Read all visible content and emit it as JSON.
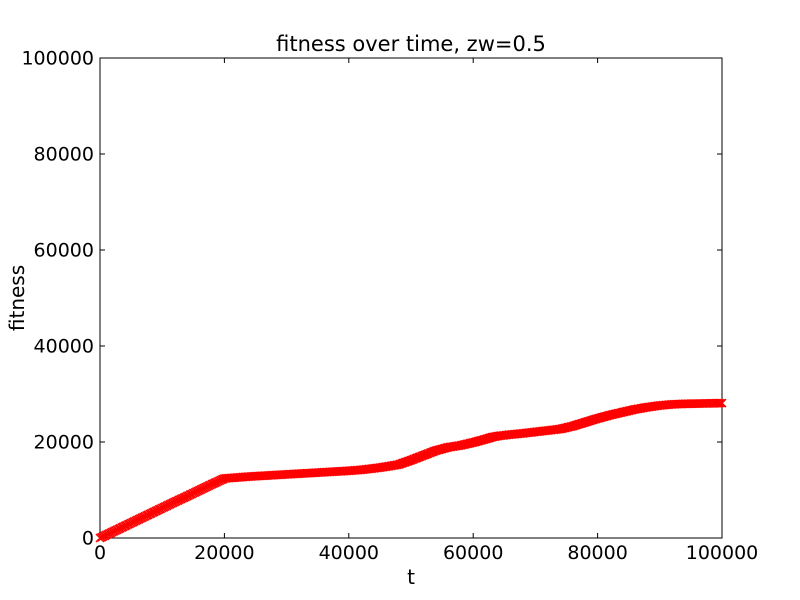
{
  "figure": {
    "background_color": "#ffffff",
    "frame_color": "#000000",
    "text_color": "#000000"
  },
  "chart_data": {
    "type": "line",
    "title": "fitness over time, zw=0.5",
    "xlabel": "t",
    "ylabel": "fitness",
    "xlim": [
      0,
      100000
    ],
    "ylim": [
      0,
      100000
    ],
    "xticks": [
      0,
      20000,
      40000,
      60000,
      80000,
      100000
    ],
    "yticks": [
      0,
      20000,
      40000,
      60000,
      80000,
      100000
    ],
    "xticklabels": [
      "0",
      "20000",
      "40000",
      "60000",
      "80000",
      "100000"
    ],
    "yticklabels": [
      "0",
      "20000",
      "40000",
      "60000",
      "80000",
      "100000"
    ],
    "grid": false,
    "legend": "none",
    "tick_direction": "in",
    "series": [
      {
        "name": "fitness",
        "color": "#ff0000",
        "marker": "x",
        "marker_step": 250,
        "points": [
          [
            0,
            0
          ],
          [
            2000,
            1250
          ],
          [
            4000,
            2500
          ],
          [
            6000,
            3750
          ],
          [
            8000,
            5000
          ],
          [
            10000,
            6250
          ],
          [
            12000,
            7500
          ],
          [
            14000,
            8700
          ],
          [
            16000,
            9950
          ],
          [
            18000,
            11200
          ],
          [
            20000,
            12400
          ],
          [
            22000,
            12600
          ],
          [
            24000,
            12800
          ],
          [
            26000,
            12950
          ],
          [
            28000,
            13100
          ],
          [
            30000,
            13250
          ],
          [
            32000,
            13400
          ],
          [
            34000,
            13550
          ],
          [
            36000,
            13700
          ],
          [
            38000,
            13850
          ],
          [
            40000,
            14000
          ],
          [
            42000,
            14200
          ],
          [
            44000,
            14500
          ],
          [
            46000,
            14850
          ],
          [
            48000,
            15300
          ],
          [
            50000,
            16200
          ],
          [
            52000,
            17200
          ],
          [
            54000,
            18200
          ],
          [
            56000,
            18900
          ],
          [
            58000,
            19300
          ],
          [
            60000,
            19900
          ],
          [
            62000,
            20600
          ],
          [
            63000,
            21000
          ],
          [
            64000,
            21250
          ],
          [
            66000,
            21550
          ],
          [
            68000,
            21800
          ],
          [
            70000,
            22100
          ],
          [
            72000,
            22400
          ],
          [
            74000,
            22700
          ],
          [
            76000,
            23300
          ],
          [
            78000,
            24100
          ],
          [
            80000,
            24900
          ],
          [
            82000,
            25600
          ],
          [
            84000,
            26200
          ],
          [
            86000,
            26800
          ],
          [
            88000,
            27250
          ],
          [
            90000,
            27600
          ],
          [
            92000,
            27850
          ],
          [
            94000,
            27950
          ],
          [
            96000,
            28000
          ],
          [
            98000,
            28050
          ],
          [
            100000,
            28100
          ]
        ]
      }
    ]
  }
}
